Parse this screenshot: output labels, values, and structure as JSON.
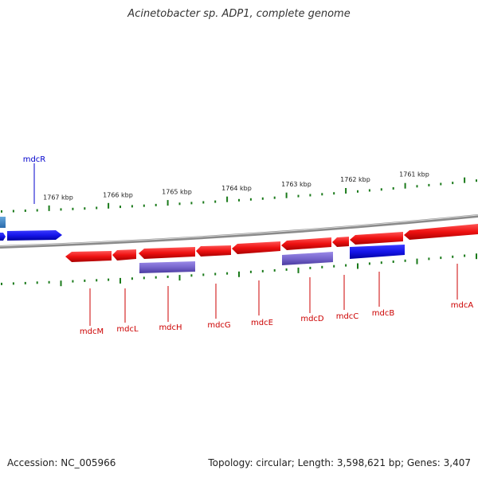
{
  "title": "Acinetobacter sp. ADP1, complete genome",
  "footer": {
    "accession": "Accession: NC_005966",
    "stats": "Topology: circular; Length: 3,598,621 bp; Genes: 3,407"
  },
  "colors": {
    "forward_gene": "#1515e8",
    "reverse_gene": "#ee1111",
    "rna_feature": "#7766cc",
    "tick": "#1a7a1a",
    "backbone": "#8a8a8a",
    "reverse_label": "#cc0000",
    "forward_label": "#0000cc"
  },
  "scale_ticks": [
    "1767 kbp",
    "1766 kbp",
    "1765 kbp",
    "1764 kbp",
    "1763 kbp",
    "1762 kbp",
    "1761 kbp"
  ],
  "forward_genes": [
    {
      "label": "mdcR",
      "strand": "+"
    }
  ],
  "reverse_genes": [
    {
      "label": "mdcM"
    },
    {
      "label": "mdcL"
    },
    {
      "label": "mdcH"
    },
    {
      "label": "mdcG"
    },
    {
      "label": "mdcE"
    },
    {
      "label": "mdcD"
    },
    {
      "label": "mdcC"
    },
    {
      "label": "mdcB"
    },
    {
      "label": "mdcA"
    }
  ]
}
